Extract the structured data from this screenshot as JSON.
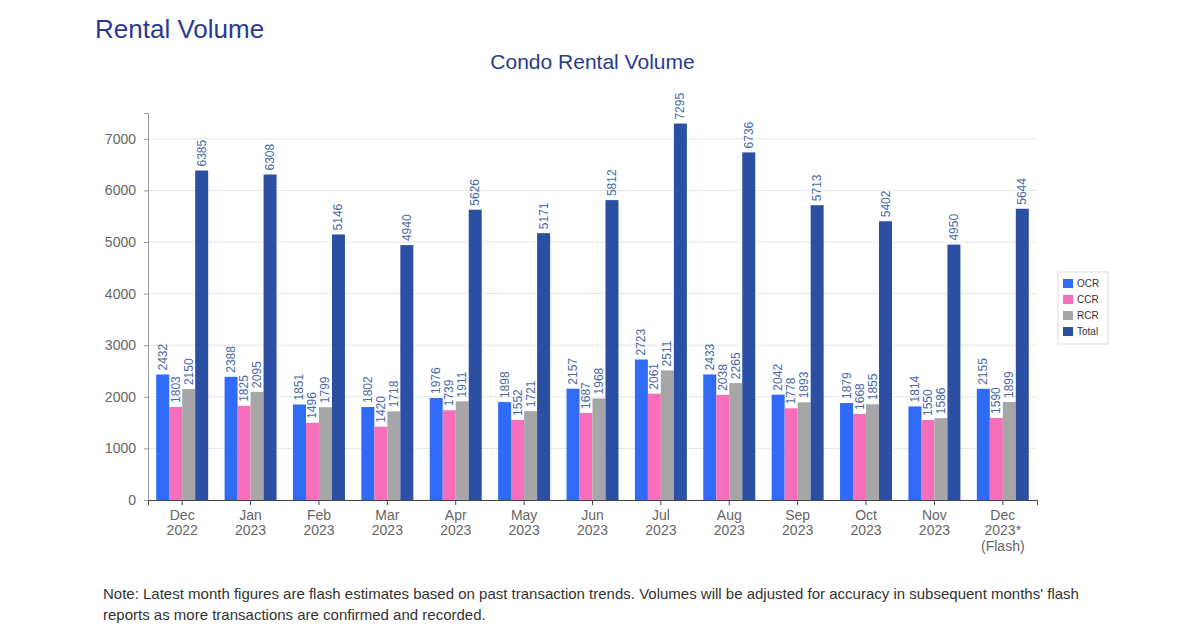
{
  "page": {
    "heading": "Rental Volume",
    "note": "Note: Latest month figures are flash estimates based on past transaction trends. Volumes will be adjusted for accuracy in subsequent months' flash reports as more transactions are confirmed and recorded."
  },
  "chart_data": {
    "type": "bar",
    "title": "Condo Rental Volume",
    "categories": [
      "Dec 2022",
      "Jan 2023",
      "Feb 2023",
      "Mar 2023",
      "Apr 2023",
      "May 2023",
      "Jun 2023",
      "Jul 2023",
      "Aug 2023",
      "Sep 2023",
      "Oct 2023",
      "Nov 2023",
      "Dec 2023* (Flash)"
    ],
    "series": [
      {
        "name": "OCR",
        "color": "#2f6bf5",
        "values": [
          2432,
          2388,
          1851,
          1802,
          1976,
          1898,
          2157,
          2723,
          2433,
          2042,
          1879,
          1814,
          2155
        ]
      },
      {
        "name": "CCR",
        "color": "#f76fbb",
        "values": [
          1803,
          1825,
          1496,
          1420,
          1739,
          1552,
          1687,
          2061,
          2038,
          1778,
          1668,
          1550,
          1590
        ]
      },
      {
        "name": "RCR",
        "color": "#a6a6a8",
        "values": [
          2150,
          2095,
          1799,
          1718,
          1911,
          1721,
          1968,
          2511,
          2265,
          1893,
          1855,
          1586,
          1899
        ]
      },
      {
        "name": "Total",
        "color": "#2a4fa3",
        "values": [
          6385,
          6308,
          5146,
          4940,
          5626,
          5171,
          5812,
          7295,
          6736,
          5713,
          5402,
          4950,
          5644
        ]
      }
    ],
    "ylim": [
      0,
      7500
    ],
    "yticks": [
      0,
      1000,
      2000,
      3000,
      4000,
      5000,
      6000,
      7000
    ],
    "grid": true,
    "legend": "right",
    "data_labels": true
  }
}
